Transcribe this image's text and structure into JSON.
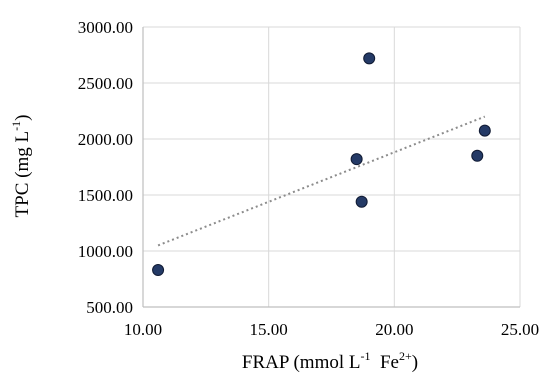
{
  "chart_data": {
    "type": "scatter",
    "title": "",
    "xlabel": {
      "base": "FRAP (mmol L",
      "sup1": "-1",
      "mid": "  Fe",
      "sup2": "2+",
      "end": ")"
    },
    "ylabel": {
      "base": "TPC (mg L",
      "sup1": "-1",
      "end": ")"
    },
    "xlim": [
      10,
      25
    ],
    "ylim": [
      500,
      3000
    ],
    "x_ticks": [
      10,
      15,
      20,
      25
    ],
    "y_ticks": [
      500,
      1000,
      1500,
      2000,
      2500,
      3000
    ],
    "x_tick_labels": [
      "10.00",
      "15.00",
      "20.00",
      "25.00"
    ],
    "y_tick_labels": [
      "500.00",
      "1000.00",
      "1500.00",
      "2000.00",
      "2500.00",
      "3000.00"
    ],
    "grid": true,
    "legend": "none",
    "series": [
      {
        "points": [
          {
            "x": 10.6,
            "y": 830
          },
          {
            "x": 18.5,
            "y": 1820
          },
          {
            "x": 18.7,
            "y": 1440
          },
          {
            "x": 19.0,
            "y": 2720
          },
          {
            "x": 23.3,
            "y": 1850
          },
          {
            "x": 23.6,
            "y": 2075
          }
        ]
      }
    ],
    "trendline": {
      "type": "linear",
      "style": "dotted",
      "x": [
        10.6,
        23.6
      ],
      "y": [
        1050,
        2200
      ]
    },
    "colors": {
      "marker": "#243a66",
      "marker_edge": "#101a33",
      "grid": "#d9d9d9",
      "axis": "#bfbfbf",
      "trendline": "#8c8c8c"
    }
  }
}
